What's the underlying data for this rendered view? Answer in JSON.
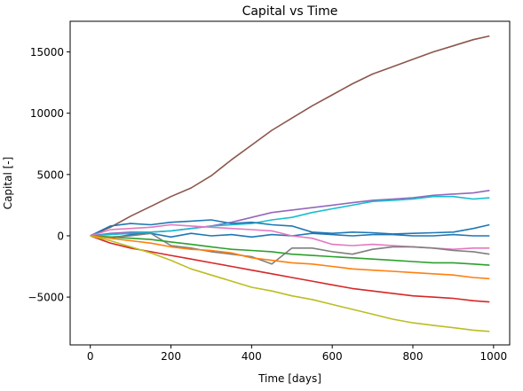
{
  "chart_data": {
    "type": "line",
    "title": "Capital vs Time",
    "xlabel": "Time [days]",
    "ylabel": "Capital [-]",
    "xlim": [
      -50,
      1040
    ],
    "ylim": [
      -8900,
      17500
    ],
    "grid": false,
    "legend": "none",
    "xticks": [
      0,
      200,
      400,
      600,
      800,
      1000
    ],
    "xtick_labels": [
      "0",
      "200",
      "400",
      "600",
      "800",
      "1000"
    ],
    "yticks": [
      -5000,
      0,
      5000,
      10000,
      15000
    ],
    "ytick_labels": [
      "−5000",
      "0",
      "5000",
      "10000",
      "15000"
    ],
    "series": [
      {
        "color": "#8c564b",
        "x": [
          0,
          50,
          100,
          150,
          200,
          250,
          300,
          350,
          400,
          450,
          500,
          550,
          600,
          650,
          700,
          750,
          800,
          850,
          900,
          950,
          990
        ],
        "y": [
          0,
          700,
          1600,
          2400,
          3200,
          3900,
          4900,
          6200,
          7400,
          8600,
          9600,
          10600,
          11500,
          12400,
          13200,
          13800,
          14400,
          15000,
          15500,
          16000,
          16300
        ]
      },
      {
        "color": "#9467bd",
        "x": [
          0,
          50,
          100,
          150,
          200,
          250,
          300,
          350,
          400,
          450,
          500,
          550,
          600,
          650,
          700,
          750,
          800,
          850,
          900,
          950,
          990
        ],
        "y": [
          0,
          200,
          300,
          300,
          400,
          600,
          800,
          1100,
          1500,
          1900,
          2100,
          2300,
          2500,
          2700,
          2900,
          3000,
          3100,
          3300,
          3400,
          3500,
          3700
        ]
      },
      {
        "color": "#17becf",
        "x": [
          0,
          50,
          100,
          150,
          200,
          250,
          300,
          350,
          400,
          450,
          500,
          550,
          600,
          650,
          700,
          750,
          800,
          850,
          900,
          950,
          990
        ],
        "y": [
          0,
          100,
          200,
          300,
          400,
          600,
          800,
          900,
          1000,
          1300,
          1500,
          1900,
          2200,
          2500,
          2800,
          2900,
          3000,
          3200,
          3200,
          3000,
          3100
        ]
      },
      {
        "color": "#1f77b4",
        "x": [
          0,
          50,
          100,
          150,
          200,
          250,
          300,
          350,
          400,
          450,
          500,
          550,
          600,
          650,
          700,
          750,
          800,
          850,
          900,
          950,
          990
        ],
        "y": [
          0,
          800,
          1000,
          900,
          1100,
          1200,
          1300,
          1000,
          1100,
          900,
          800,
          300,
          200,
          300,
          250,
          150,
          200,
          250,
          300,
          600,
          900
        ]
      },
      {
        "color": "#1f77b4",
        "x": [
          0,
          50,
          100,
          150,
          200,
          250,
          300,
          350,
          400,
          450,
          500,
          550,
          600,
          650,
          700,
          750,
          800,
          850,
          900,
          950,
          990
        ],
        "y": [
          0,
          -200,
          100,
          200,
          -100,
          200,
          0,
          100,
          -100,
          100,
          0,
          200,
          100,
          0,
          100,
          100,
          0,
          0,
          100,
          0,
          0
        ]
      },
      {
        "color": "#e377c2",
        "x": [
          0,
          50,
          100,
          150,
          200,
          250,
          300,
          350,
          400,
          450,
          500,
          550,
          600,
          650,
          700,
          750,
          800,
          850,
          900,
          950,
          990
        ],
        "y": [
          0,
          500,
          600,
          700,
          900,
          800,
          700,
          600,
          500,
          400,
          0,
          -200,
          -700,
          -800,
          -700,
          -800,
          -900,
          -1000,
          -1100,
          -1000,
          -1000
        ]
      },
      {
        "color": "#7f7f7f",
        "x": [
          0,
          50,
          100,
          150,
          200,
          250,
          300,
          350,
          400,
          450,
          500,
          550,
          600,
          650,
          700,
          750,
          800,
          850,
          900,
          950,
          990
        ],
        "y": [
          0,
          -100,
          0,
          200,
          -800,
          -1000,
          -1300,
          -1500,
          -1700,
          -2300,
          -1000,
          -1000,
          -1300,
          -1500,
          -1100,
          -900,
          -900,
          -1000,
          -1200,
          -1300,
          -1500
        ]
      },
      {
        "color": "#2ca02c",
        "x": [
          0,
          50,
          100,
          150,
          200,
          250,
          300,
          350,
          400,
          450,
          500,
          550,
          600,
          650,
          700,
          750,
          800,
          850,
          900,
          950,
          990
        ],
        "y": [
          0,
          -100,
          -200,
          -300,
          -500,
          -700,
          -900,
          -1100,
          -1200,
          -1300,
          -1500,
          -1600,
          -1700,
          -1800,
          -1900,
          -2000,
          -2100,
          -2200,
          -2200,
          -2300,
          -2400
        ]
      },
      {
        "color": "#ff7f0e",
        "x": [
          0,
          50,
          100,
          150,
          200,
          250,
          300,
          350,
          400,
          450,
          500,
          550,
          600,
          650,
          700,
          750,
          800,
          850,
          900,
          950,
          990
        ],
        "y": [
          0,
          -200,
          -400,
          -600,
          -900,
          -1100,
          -1200,
          -1400,
          -1800,
          -2000,
          -2200,
          -2300,
          -2500,
          -2700,
          -2800,
          -2900,
          -3000,
          -3100,
          -3200,
          -3400,
          -3500
        ]
      },
      {
        "color": "#d62728",
        "x": [
          0,
          50,
          100,
          150,
          200,
          250,
          300,
          350,
          400,
          450,
          500,
          550,
          600,
          650,
          700,
          750,
          800,
          850,
          900,
          950,
          990
        ],
        "y": [
          0,
          -600,
          -1000,
          -1300,
          -1600,
          -1900,
          -2200,
          -2500,
          -2800,
          -3100,
          -3400,
          -3700,
          -4000,
          -4300,
          -4500,
          -4700,
          -4900,
          -5000,
          -5100,
          -5300,
          -5400
        ]
      },
      {
        "color": "#bcbd22",
        "x": [
          0,
          50,
          100,
          150,
          200,
          250,
          300,
          350,
          400,
          450,
          500,
          550,
          600,
          650,
          700,
          750,
          800,
          850,
          900,
          950,
          990
        ],
        "y": [
          0,
          -400,
          -900,
          -1400,
          -2000,
          -2700,
          -3200,
          -3700,
          -4200,
          -4500,
          -4900,
          -5200,
          -5600,
          -6000,
          -6400,
          -6800,
          -7100,
          -7300,
          -7500,
          -7700,
          -7800
        ]
      }
    ]
  }
}
